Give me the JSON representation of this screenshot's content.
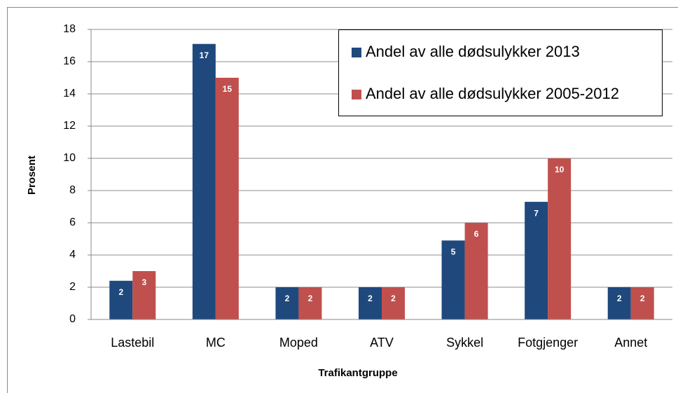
{
  "chart_data": {
    "type": "bar",
    "x_label": "Trafikantgruppe",
    "y_label": "Prosent",
    "categories": [
      "Lastebil",
      "MC",
      "Moped",
      "ATV",
      "Sykkel",
      "Fotgjenger",
      "Annet"
    ],
    "series": [
      {
        "name": "Andel av alle dødsulykker 2013",
        "color": "#1f497d",
        "values": [
          2.4,
          17.1,
          2,
          2,
          4.9,
          7.3,
          2
        ],
        "value_labels": [
          "2",
          "17",
          "2",
          "2",
          "5",
          "7",
          "2"
        ]
      },
      {
        "name": "Andel av alle dødsulykker 2005-2012",
        "color": "#c0504d",
        "values": [
          3,
          15,
          2,
          2,
          6,
          10,
          2
        ]
      }
    ],
    "ylim": [
      0,
      18
    ],
    "yticks": [
      0,
      2,
      4,
      6,
      8,
      10,
      12,
      14,
      16,
      18
    ],
    "grid": true,
    "legend": "upper right"
  }
}
